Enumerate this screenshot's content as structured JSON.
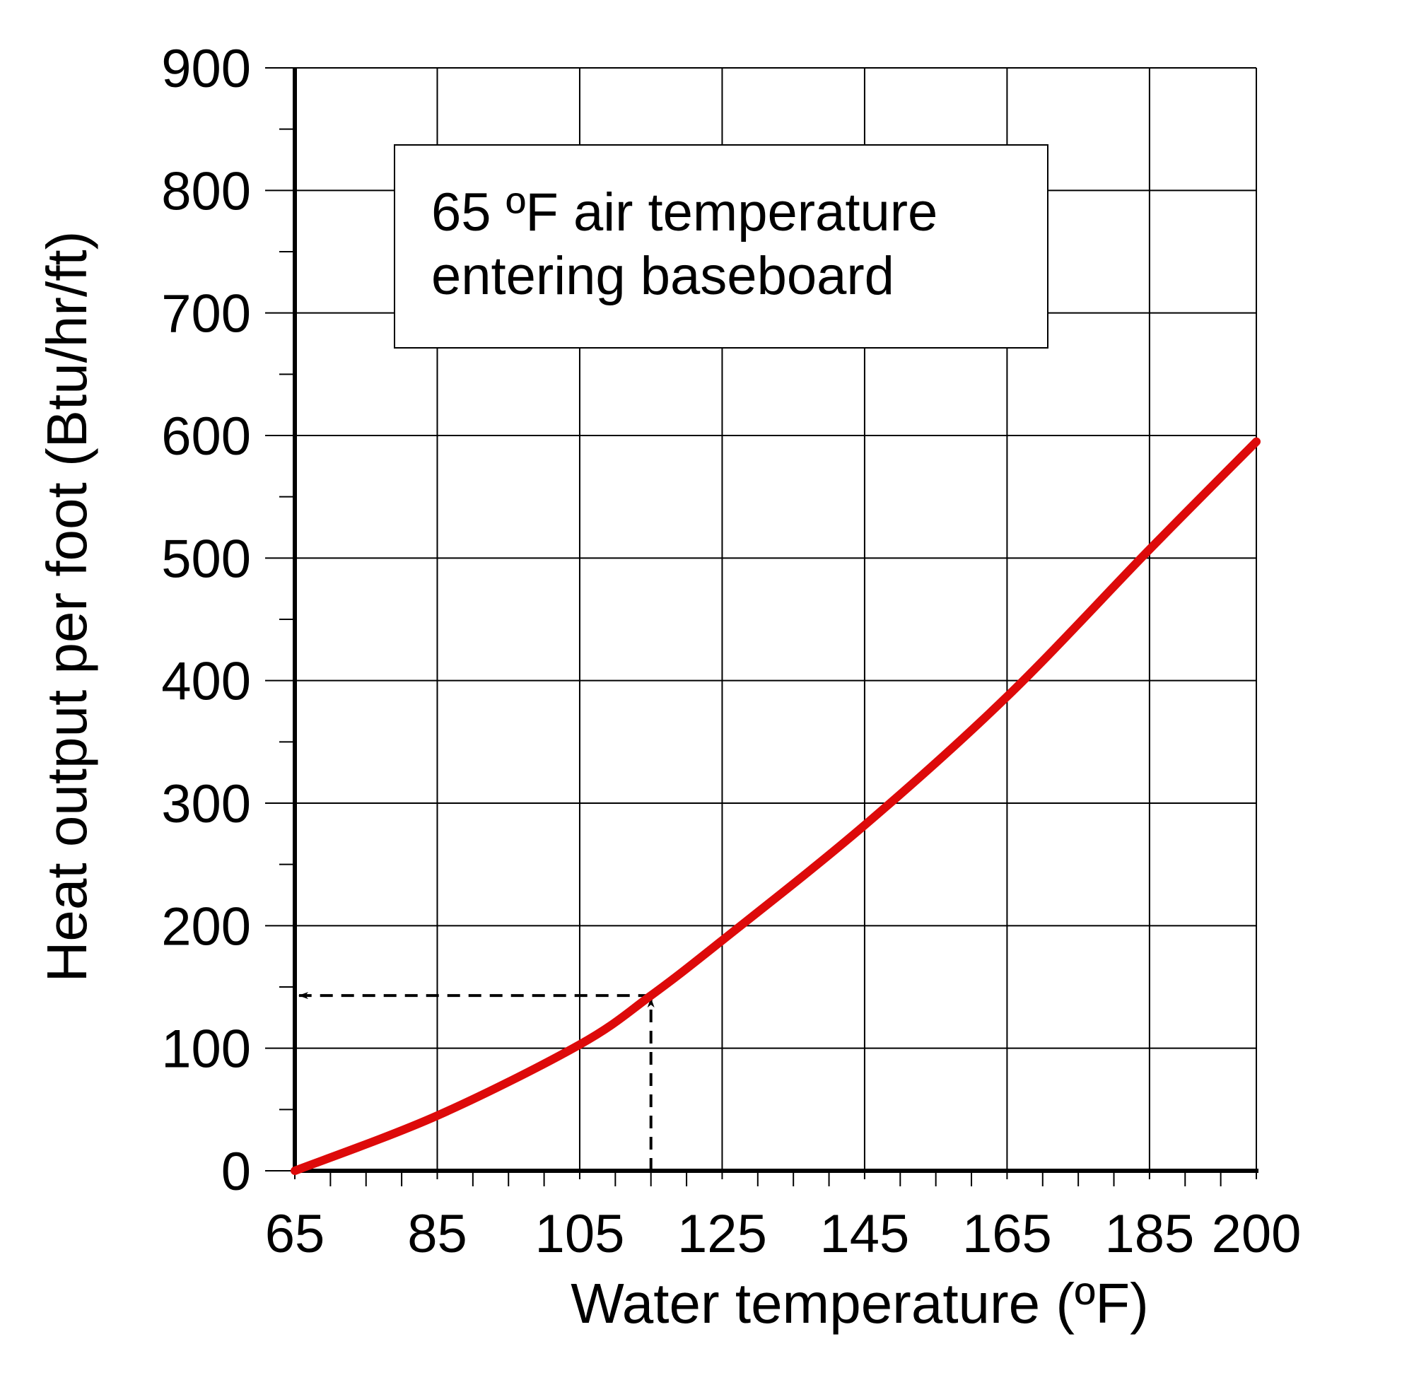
{
  "chart_data": {
    "type": "line",
    "x_label": "Water temperature (ºF)",
    "y_label": "Heat output per foot (Btu/hr/ft)",
    "annotation": [
      "65 ºF air temperature",
      "entering baseboard"
    ],
    "x": [
      65,
      85,
      105,
      115,
      125,
      145,
      165,
      185,
      200
    ],
    "series": [
      {
        "color": "#dd0a0a",
        "values": [
          0,
          45,
          103,
          143,
          188,
          282,
          387,
          507,
          595
        ]
      }
    ],
    "reference_point": {
      "x": 115,
      "y": 143
    },
    "xlim": [
      65,
      200
    ],
    "ylim": [
      0,
      900
    ],
    "xticks": [
      65,
      85,
      105,
      125,
      145,
      165,
      185,
      200
    ],
    "yticks": [
      0,
      100,
      200,
      300,
      400,
      500,
      600,
      700,
      800,
      900
    ],
    "x_minor_ticks": [
      70,
      75,
      80,
      90,
      95,
      100,
      110,
      115,
      120,
      130,
      135,
      140,
      150,
      155,
      160,
      170,
      175,
      180,
      190,
      195
    ],
    "y_minor_ticks": [
      50,
      150,
      250,
      350,
      450,
      550,
      650,
      750,
      850
    ],
    "grid": true
  }
}
